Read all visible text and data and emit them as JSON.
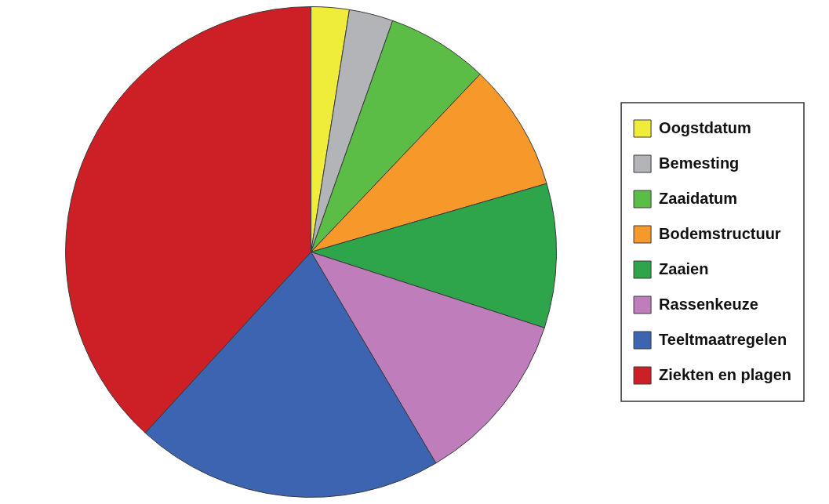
{
  "chart_data": {
    "type": "pie",
    "legend": "right",
    "categories": [
      "Oogstdatum",
      "Bemesting",
      "Zaaidatum",
      "Bodemstructuur",
      "Zaaien",
      "Rassenkeuze",
      "Teeltmaatregelen",
      "Ziekten en plagen"
    ],
    "values": [
      2.5,
      2.9,
      6.7,
      8.4,
      9.5,
      11.5,
      20.3,
      38.2
    ],
    "colors": [
      "#f0ec3a",
      "#b2b4b8",
      "#5cbd46",
      "#f7982a",
      "#2ea44b",
      "#c07dbb",
      "#3c64b0",
      "#cc1f26"
    ]
  }
}
